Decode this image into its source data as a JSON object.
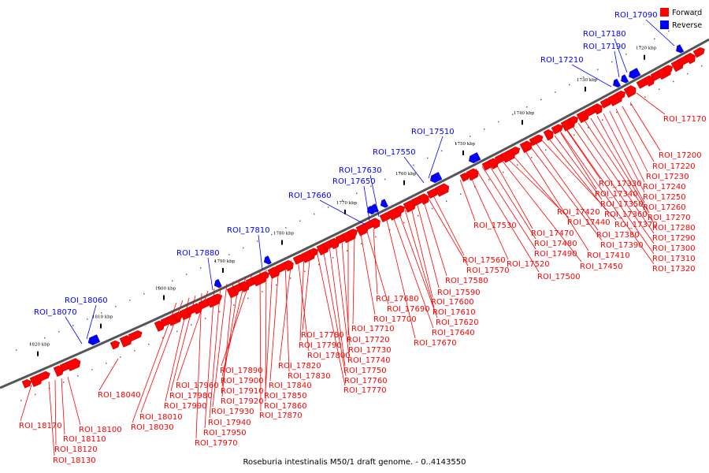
{
  "caption": "Roseburia intestinalis M50/1 draft genome. - 0..4143550",
  "legend": [
    {
      "label": "Forward",
      "color": "#ff0000"
    },
    {
      "label": "Reverse",
      "color": "#0000ff"
    }
  ],
  "colors": {
    "forward": "#ff0000",
    "reverse": "#0000ff",
    "genome_line": "#555555"
  },
  "kbp_ticks": [
    "1720 kbp",
    "1730 kbp",
    "1740 kbp",
    "1750 kbp",
    "1760 kbp",
    "1770 kbp",
    "1780 kbp",
    "1790 kbp",
    "1800 kbp",
    "1810 kbp",
    "1820 kbp"
  ],
  "reverse_labels": [
    "ROI_17090",
    "ROI_17180",
    "ROI_17190",
    "ROI_17210",
    "ROI_17510",
    "ROI_17550",
    "ROI_17630",
    "ROI_17650",
    "ROI_17660",
    "ROI_17810",
    "ROI_17880",
    "ROI_18060",
    "ROI_18070"
  ],
  "forward_labels": [
    "ROI_17170",
    "ROI_17200",
    "ROI_17220",
    "ROI_17230",
    "ROI_17240",
    "ROI_17250",
    "ROI_17260",
    "ROI_17270",
    "ROI_17280",
    "ROI_17290",
    "ROI_17300",
    "ROI_17310",
    "ROI_17320",
    "ROI_17330",
    "ROI_17340",
    "ROI_17350",
    "ROI_17360",
    "ROI_17370",
    "ROI_17380",
    "ROI_17390",
    "ROI_17410",
    "ROI_17420",
    "ROI_17440",
    "ROI_17450",
    "ROI_17470",
    "ROI_17480",
    "ROI_17490",
    "ROI_17500",
    "ROI_17520",
    "ROI_17530",
    "ROI_17560",
    "ROI_17570",
    "ROI_17580",
    "ROI_17590",
    "ROI_17600",
    "ROI_17610",
    "ROI_17620",
    "ROI_17640",
    "ROI_17670",
    "ROI_17680",
    "ROI_17690",
    "ROI_17700",
    "ROI_17710",
    "ROI_17720",
    "ROI_17730",
    "ROI_17740",
    "ROI_17750",
    "ROI_17760",
    "ROI_17770",
    "ROI_17780",
    "ROI_17790",
    "ROI_17800",
    "ROI_17820",
    "ROI_17830",
    "ROI_17840",
    "ROI_17850",
    "ROI_17860",
    "ROI_17870",
    "ROI_17890",
    "ROI_17900",
    "ROI_17910",
    "ROI_17920",
    "ROI_17930",
    "ROI_17940",
    "ROI_17950",
    "ROI_17960",
    "ROI_17970",
    "ROI_17980",
    "ROI_17990",
    "ROI_18010",
    "ROI_18030",
    "ROI_18040",
    "ROI_18100",
    "ROI_18110",
    "ROI_18120",
    "ROI_18130",
    "ROI_18170"
  ]
}
